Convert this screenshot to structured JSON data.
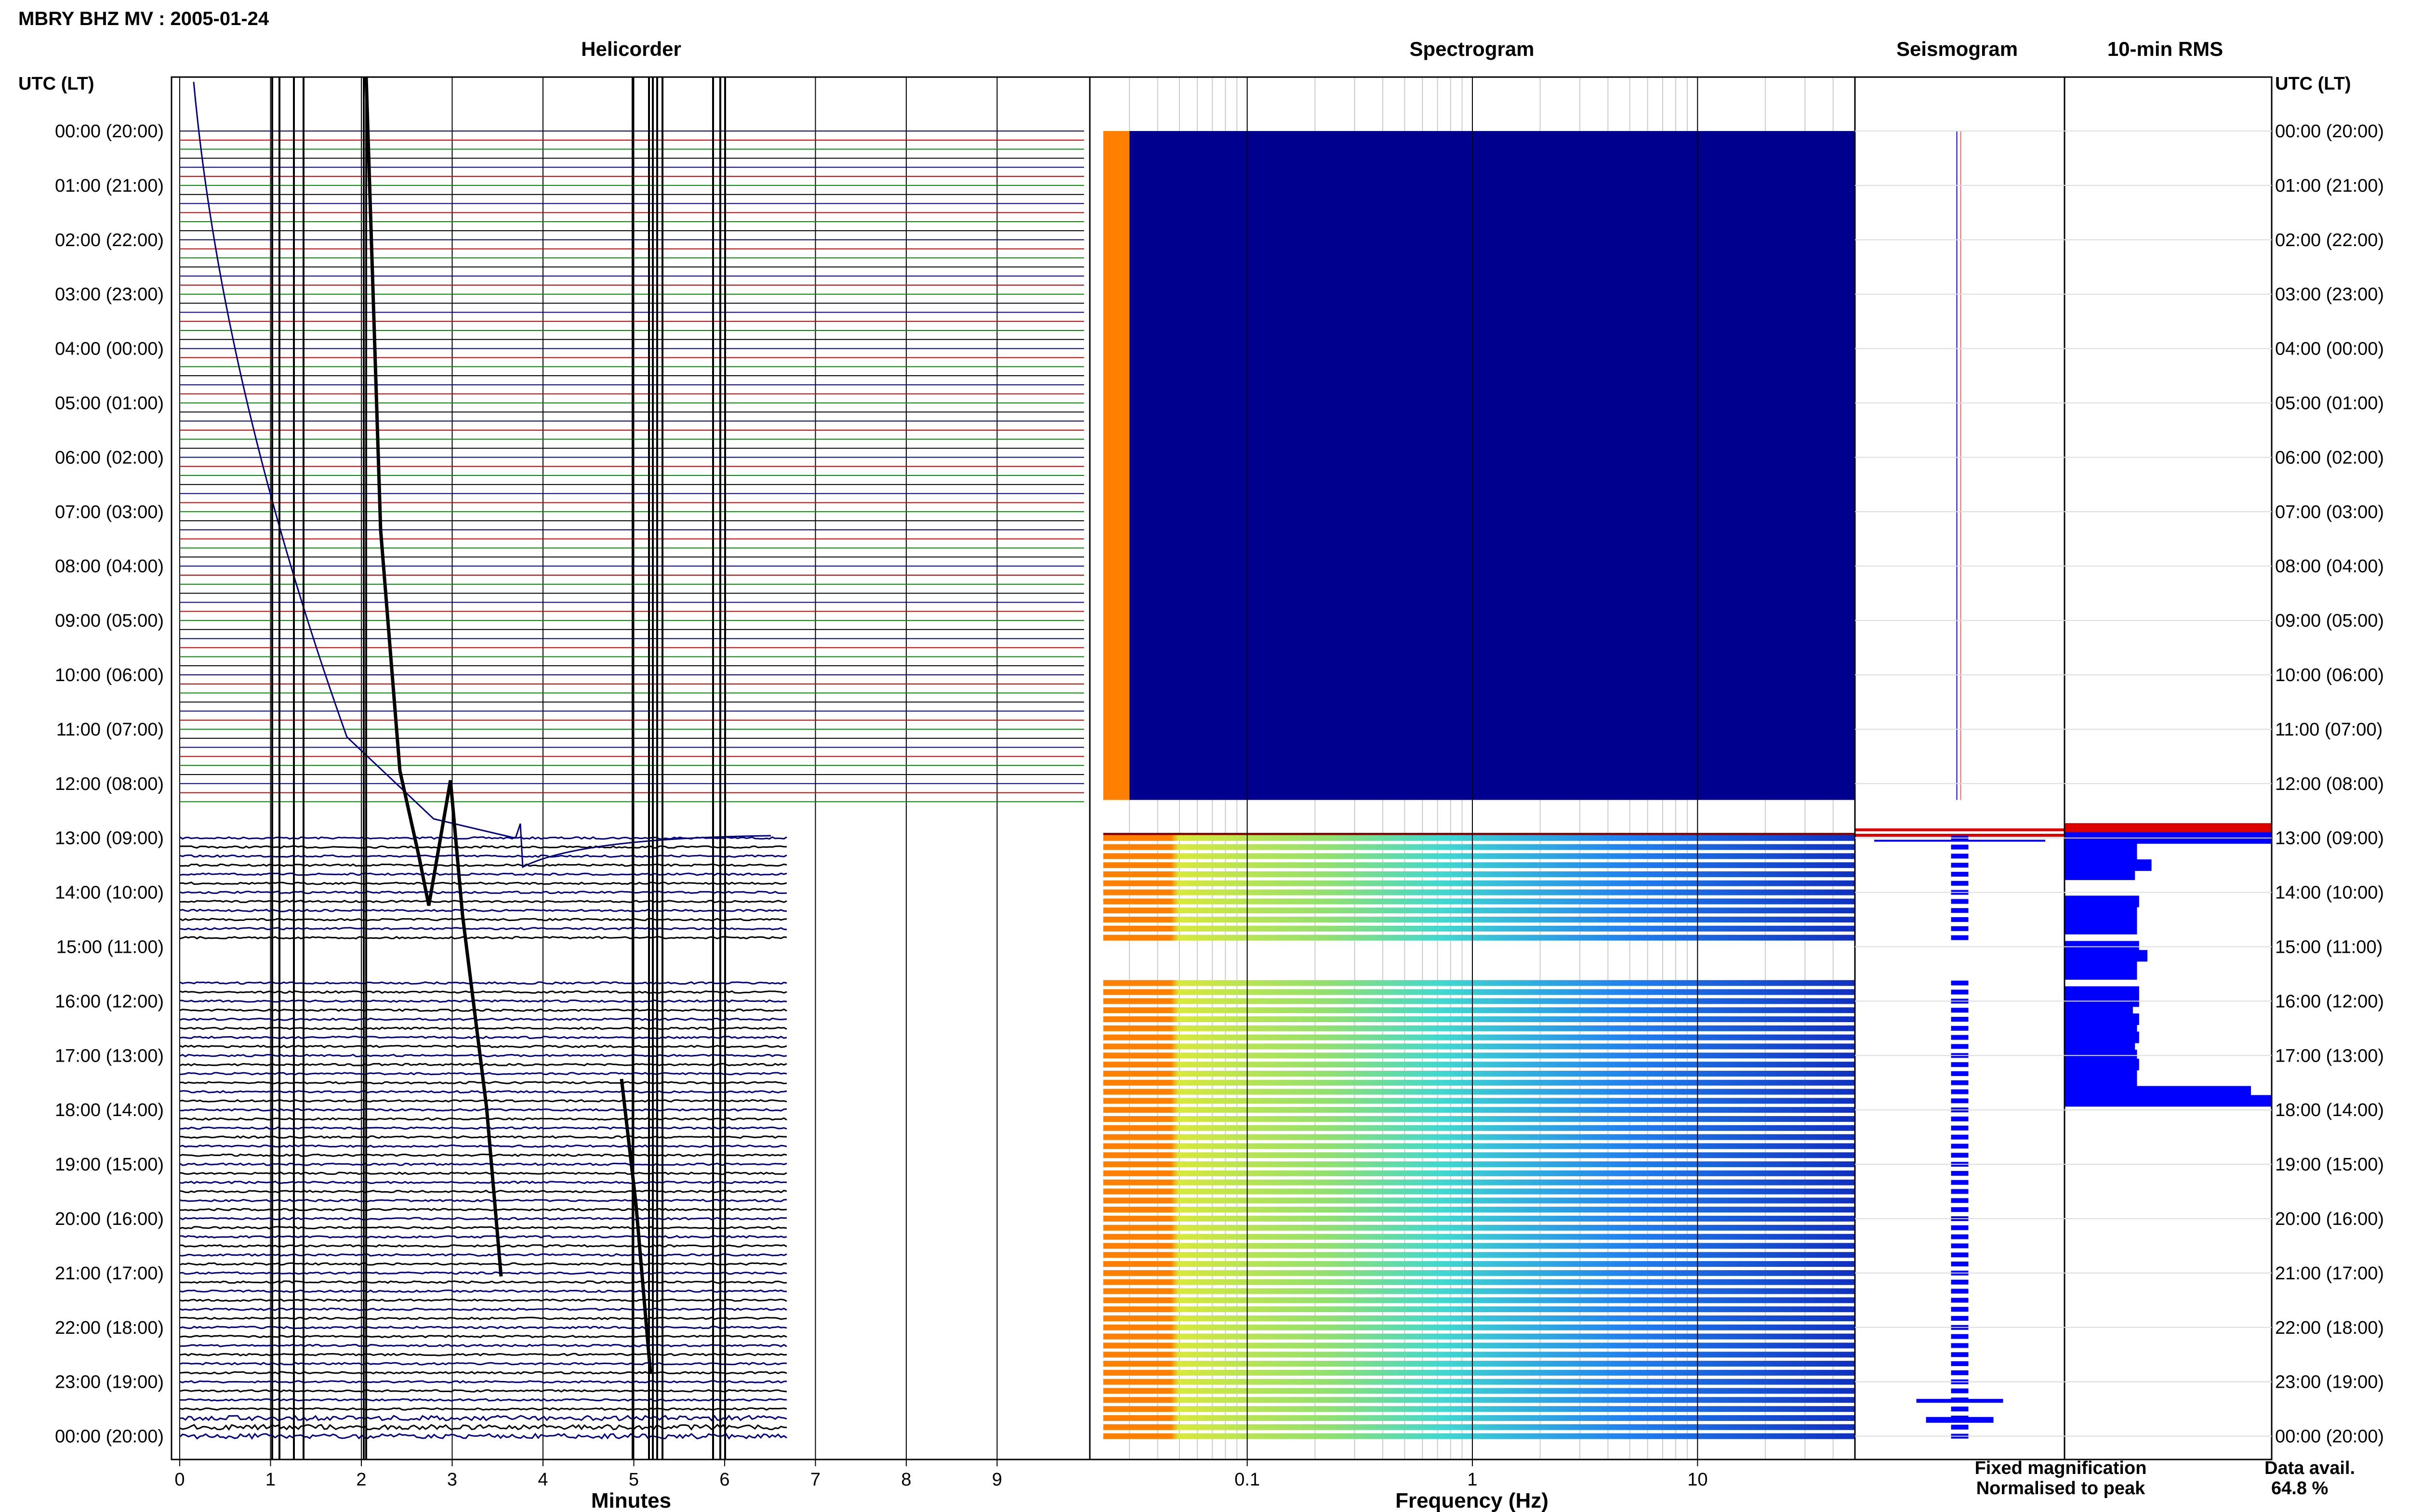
{
  "figure": {
    "title": "MBRY BHZ MV : 2005-01-24"
  },
  "panels": {
    "helicorder": "Helicorder",
    "spectrogram": "Spectrogram",
    "seismogram": "Seismogram",
    "rms": "10-min RMS"
  },
  "axis_labels": {
    "time_left": "UTC (LT)",
    "time_right": "UTC (LT)",
    "helicorder_x": "Minutes",
    "spectrogram_x": "Frequency (Hz)"
  },
  "legend": {
    "fixed": "Fixed magnification",
    "normalised": "Normalised to peak",
    "fixed_color": "#0000ff",
    "normalised_color": "#ff0000"
  },
  "data_availability": {
    "label": "Data avail.",
    "value": "64.8 %"
  },
  "colors": {
    "trace_black": "#000000",
    "trace_blue": "#000080",
    "trace_red": "#cc0000",
    "trace_green": "#008800",
    "spec_orange": "#ff8000",
    "spec_navy": "#00008f",
    "rms_bar": "#0000ff",
    "rms_peak": "#dd0000"
  },
  "chart_data": [
    {
      "type": "line",
      "title": "Helicorder",
      "xlabel": "Minutes",
      "ylabel": "UTC (LT)",
      "x_ticks": [
        "0",
        "1",
        "2",
        "3",
        "4",
        "5",
        "6",
        "7",
        "8",
        "9"
      ],
      "xlim": [
        0,
        10
      ],
      "y_ticks": [
        "00:00 (20:00)",
        "01:00 (21:00)",
        "02:00 (22:00)",
        "03:00 (23:00)",
        "04:00 (00:00)",
        "05:00 (01:00)",
        "06:00 (02:00)",
        "07:00 (03:00)",
        "08:00 (04:00)",
        "09:00 (05:00)",
        "10:00 (06:00)",
        "11:00 (07:00)",
        "12:00 (08:00)",
        "13:00 (09:00)",
        "14:00 (10:00)",
        "15:00 (11:00)",
        "16:00 (12:00)",
        "17:00 (13:00)",
        "18:00 (14:00)",
        "19:00 (15:00)",
        "20:00 (16:00)",
        "21:00 (17:00)",
        "22:00 (18:00)",
        "23:00 (19:00)",
        "00:00 (20:00)"
      ],
      "grid": true,
      "row_minutes": 10,
      "data_rows_minutes_recorded": 6.7
    },
    {
      "type": "heatmap",
      "title": "Spectrogram",
      "xlabel": "Frequency (Hz)",
      "x_scale": "log",
      "x_ticks": [
        "0.1",
        "1",
        "10"
      ],
      "xlim": [
        0.02,
        50
      ]
    },
    {
      "type": "line",
      "title": "Seismogram",
      "series": [
        {
          "name": "Fixed magnification"
        },
        {
          "name": "Normalised to peak"
        }
      ]
    },
    {
      "type": "bar",
      "title": "10-min RMS",
      "orientation": "horizontal",
      "rows_start": "12:50",
      "values": [
        1.0,
        1.0,
        0.35,
        0.35,
        0.42,
        0.34,
        null,
        null,
        0.36,
        0.35,
        0.35,
        0.35,
        null,
        0.36,
        0.4,
        0.35,
        0.35,
        null,
        0.36,
        0.36,
        0.33,
        0.36,
        0.35,
        0.36,
        0.34,
        0.35,
        0.36,
        0.35,
        0.35,
        0.9,
        1.0
      ]
    }
  ]
}
